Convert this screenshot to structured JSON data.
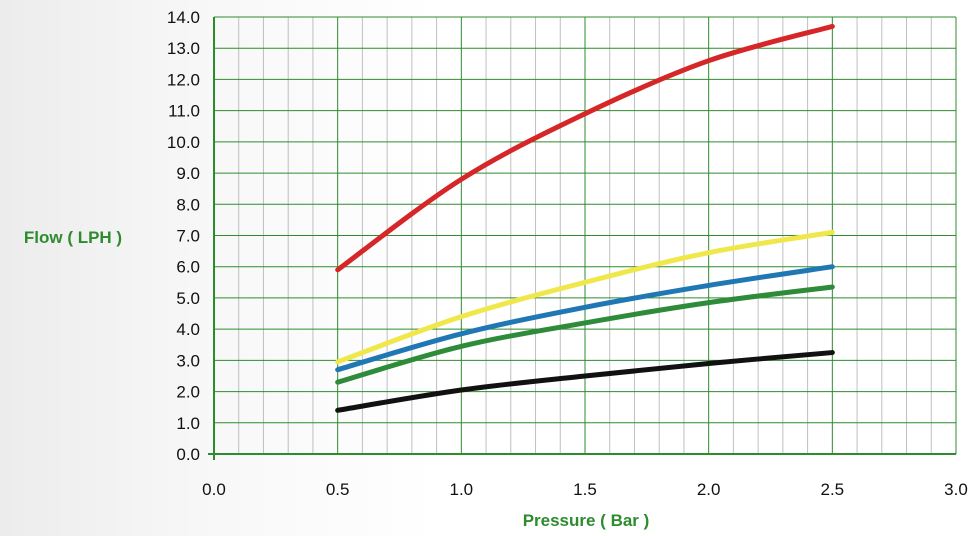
{
  "chart_data": {
    "type": "line",
    "title": "",
    "xlabel": "Pressure ( Bar )",
    "ylabel": "Flow ( LPH )",
    "xlim": [
      0,
      3
    ],
    "ylim": [
      0,
      14
    ],
    "x_ticks": [
      "0.0",
      "0.5",
      "1.0",
      "1.5",
      "2.0",
      "2.5",
      "3.0"
    ],
    "y_ticks": [
      "0.0",
      "1.0",
      "2.0",
      "3.0",
      "4.0",
      "5.0",
      "6.0",
      "7.0",
      "8.0",
      "9.0",
      "10.0",
      "11.0",
      "12.0",
      "13.0",
      "14.0"
    ],
    "grid": true,
    "x": [
      0.5,
      1.0,
      1.5,
      2.0,
      2.5
    ],
    "series": [
      {
        "color": "#d62728",
        "values": [
          5.9,
          8.8,
          10.9,
          12.6,
          13.7
        ]
      },
      {
        "color": "#f0e84a",
        "values": [
          2.95,
          4.4,
          5.5,
          6.45,
          7.1
        ]
      },
      {
        "color": "#1f77b4",
        "values": [
          2.7,
          3.85,
          4.7,
          5.4,
          6.0
        ]
      },
      {
        "color": "#2e8b3a",
        "values": [
          2.3,
          3.45,
          4.2,
          4.85,
          5.35
        ]
      },
      {
        "color": "#111111",
        "values": [
          1.4,
          2.05,
          2.5,
          2.9,
          3.25
        ]
      }
    ],
    "colors": {
      "grid_major": "#2e8b2e",
      "grid_minor": "#bfbfbf",
      "axis": "#2e8b2e",
      "title_text": "#2e8b2e"
    }
  }
}
